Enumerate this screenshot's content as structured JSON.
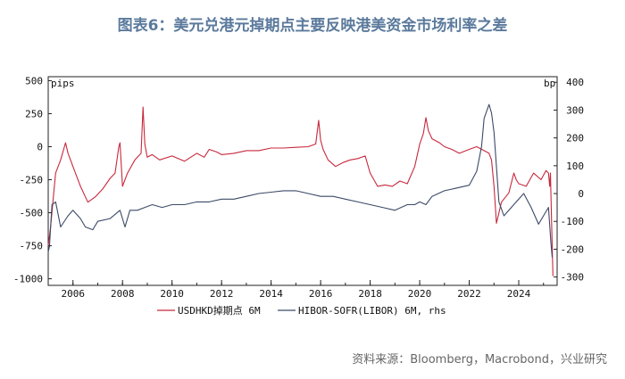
{
  "title": "图表6：美元兑港元掉期点主要反映港美资金市场利率之差",
  "source": "资料来源：Bloomberg，Macrobond，兴业研究",
  "colors": {
    "usdhkd": "#c8283c",
    "hibor": "#3b4a66",
    "title": "#5b7a9c"
  },
  "chart_data": {
    "type": "line",
    "title": "美元兑港元掉期点主要反映港美资金市场利率之差",
    "left_axis": {
      "unit": "pips",
      "ylim": [
        -1050,
        530
      ],
      "ticks": [
        500,
        250,
        0,
        -250,
        -500,
        -750,
        -1000
      ]
    },
    "right_axis": {
      "unit": "bp",
      "ylim": [
        -330,
        420
      ],
      "ticks": [
        400,
        300,
        200,
        100,
        0,
        -100,
        -200,
        -300
      ]
    },
    "x_axis": {
      "xlim": [
        2005.0,
        2025.55
      ],
      "ticks": [
        2006,
        2008,
        2010,
        2012,
        2014,
        2016,
        2018,
        2020,
        2022,
        2024
      ]
    },
    "legend_placement": "bottom-center",
    "series": [
      {
        "name": "USDHKD掉期点 6M",
        "axis": "left",
        "x": [
          2005.0,
          2005.1,
          2005.2,
          2005.3,
          2005.5,
          2005.7,
          2005.8,
          2006.0,
          2006.3,
          2006.6,
          2006.9,
          2007.2,
          2007.5,
          2007.7,
          2007.85,
          2007.9,
          2008.0,
          2008.2,
          2008.5,
          2008.75,
          2008.83,
          2008.9,
          2009.0,
          2009.2,
          2009.5,
          2010.0,
          2010.5,
          2011.0,
          2011.3,
          2011.5,
          2011.8,
          2012.0,
          2012.5,
          2013.0,
          2013.5,
          2014.0,
          2014.5,
          2015.0,
          2015.5,
          2015.8,
          2015.92,
          2016.0,
          2016.1,
          2016.3,
          2016.6,
          2016.9,
          2017.2,
          2017.5,
          2017.8,
          2018.0,
          2018.3,
          2018.6,
          2018.9,
          2019.2,
          2019.5,
          2019.8,
          2020.0,
          2020.15,
          2020.25,
          2020.35,
          2020.5,
          2020.8,
          2021.0,
          2021.3,
          2021.6,
          2022.0,
          2022.3,
          2022.6,
          2022.8,
          2022.9,
          2023.0,
          2023.1,
          2023.3,
          2023.6,
          2023.8,
          2023.9,
          2024.0,
          2024.3,
          2024.6,
          2024.9,
          2025.1,
          2025.2,
          2025.25,
          2025.28,
          2025.33,
          2025.38
        ],
        "values": [
          -750,
          -600,
          -400,
          -200,
          -100,
          30,
          -50,
          -150,
          -300,
          -420,
          -380,
          -320,
          -240,
          -200,
          0,
          30,
          -300,
          -200,
          -100,
          -50,
          300,
          20,
          -80,
          -60,
          -100,
          -70,
          -110,
          -50,
          -80,
          -20,
          -40,
          -60,
          -50,
          -30,
          -30,
          -10,
          -10,
          -5,
          0,
          20,
          200,
          50,
          -20,
          -100,
          -150,
          -120,
          -100,
          -90,
          -70,
          -200,
          -300,
          -290,
          -300,
          -260,
          -280,
          -150,
          20,
          100,
          220,
          120,
          60,
          30,
          0,
          -20,
          -50,
          -20,
          0,
          -30,
          -50,
          -100,
          -300,
          -580,
          -420,
          -350,
          -200,
          -250,
          -280,
          -300,
          -200,
          -250,
          -180,
          -200,
          -300,
          -200,
          -600,
          -980
        ]
      },
      {
        "name": "HIBOR-SOFR(LIBOR) 6M, rhs",
        "axis": "right",
        "x": [
          2005.0,
          2005.05,
          2005.15,
          2005.3,
          2005.5,
          2005.8,
          2006.0,
          2006.3,
          2006.5,
          2006.8,
          2007.0,
          2007.5,
          2007.9,
          2008.1,
          2008.3,
          2008.6,
          2008.9,
          2009.2,
          2009.6,
          2010.0,
          2010.5,
          2011.0,
          2011.5,
          2012.0,
          2012.5,
          2013.0,
          2013.5,
          2014.0,
          2014.5,
          2015.0,
          2015.5,
          2016.0,
          2016.5,
          2017.0,
          2017.5,
          2018.0,
          2018.5,
          2019.0,
          2019.5,
          2019.8,
          2020.0,
          2020.25,
          2020.5,
          2021.0,
          2021.5,
          2022.0,
          2022.3,
          2022.5,
          2022.6,
          2022.8,
          2022.9,
          2023.0,
          2023.2,
          2023.4,
          2023.6,
          2023.9,
          2024.2,
          2024.5,
          2024.8,
          2025.0,
          2025.2,
          2025.3,
          2025.35
        ],
        "values": [
          -210,
          -190,
          -40,
          -30,
          -120,
          -80,
          -60,
          -90,
          -120,
          -130,
          -100,
          -90,
          -60,
          -120,
          -60,
          -60,
          -50,
          -40,
          -50,
          -40,
          -40,
          -30,
          -30,
          -20,
          -20,
          -10,
          0,
          5,
          10,
          10,
          0,
          -10,
          -10,
          -20,
          -30,
          -40,
          -50,
          -60,
          -40,
          -40,
          -30,
          -40,
          -10,
          10,
          20,
          30,
          80,
          170,
          270,
          320,
          290,
          220,
          -30,
          -80,
          -60,
          -30,
          0,
          -50,
          -110,
          -80,
          -50,
          -180,
          -230
        ]
      }
    ]
  }
}
